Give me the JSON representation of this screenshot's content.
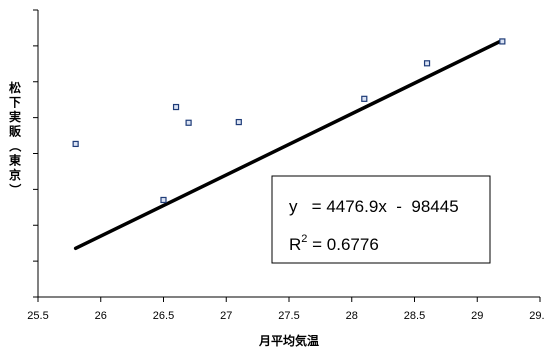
{
  "chart_data": {
    "type": "scatter",
    "xlabel": "月平均気温",
    "ylabel": "松下実販（東京）",
    "xlim": [
      25.5,
      29.5
    ],
    "ylim": [
      13500,
      34500
    ],
    "x_ticks": [
      "25.5",
      "26",
      "26.5",
      "27",
      "27.5",
      "28",
      "28.5",
      "29",
      "29.5"
    ],
    "y_tick_count": 8,
    "grid": false,
    "points": [
      {
        "x": 25.8,
        "y": 24700
      },
      {
        "x": 26.5,
        "y": 20600
      },
      {
        "x": 26.6,
        "y": 27400
      },
      {
        "x": 26.7,
        "y": 26250
      },
      {
        "x": 27.1,
        "y": 26300
      },
      {
        "x": 28.1,
        "y": 28000
      },
      {
        "x": 28.6,
        "y": 30600
      },
      {
        "x": 29.2,
        "y": 32200
      }
    ],
    "trendline": {
      "slope": 4476.9,
      "intercept": -98445,
      "x_range": [
        25.8,
        29.2
      ],
      "equation_line1": "y   = 4476.9x  -  98445",
      "r2_prefix": "R",
      "r2_superscript": "2",
      "r2_value": " = 0.6776"
    },
    "marker_color": "#1f3c78",
    "line_color": "#000000"
  }
}
